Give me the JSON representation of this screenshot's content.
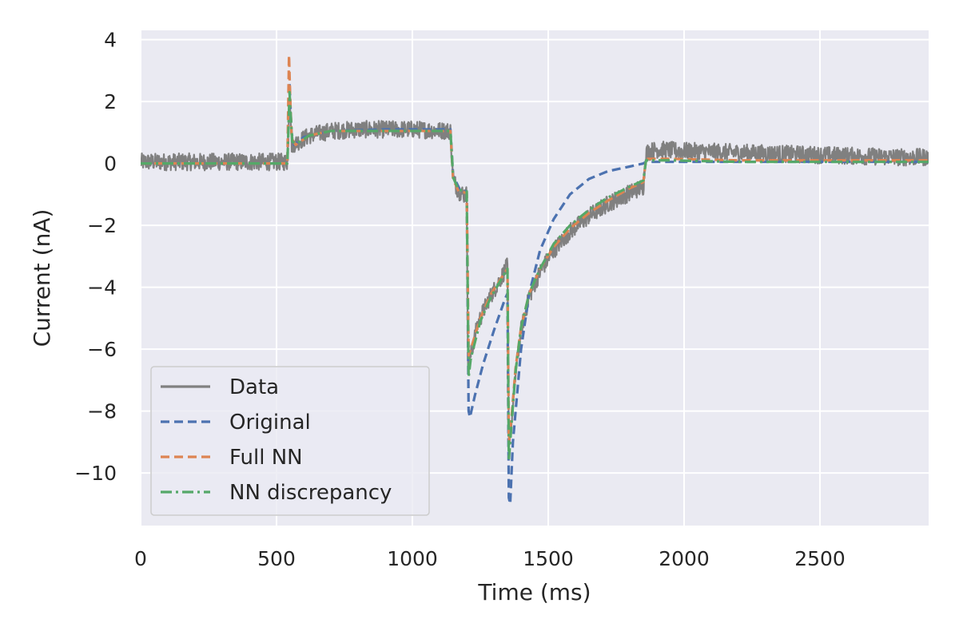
{
  "chart_data": {
    "type": "line",
    "title": "",
    "xlabel": "Time (ms)",
    "ylabel": "Current (nA)",
    "xlim": [
      0,
      2900
    ],
    "ylim": [
      -11.7,
      4.3
    ],
    "xticks": [
      0,
      500,
      1000,
      1500,
      2000,
      2500
    ],
    "xtick_labels": [
      "0",
      "500",
      "1000",
      "1500",
      "2000",
      "2500"
    ],
    "yticks": [
      4,
      2,
      0,
      -2,
      -4,
      -6,
      -8,
      -10
    ],
    "ytick_labels": [
      "4",
      "2",
      "0",
      "−2",
      "−4",
      "−6",
      "−8",
      "−10"
    ],
    "grid": true,
    "legend_position": "lower-left",
    "colors": {
      "background": "#eaeaf2",
      "grid": "#ffffff",
      "data": "#808080",
      "original": "#4c72b0",
      "full_nn": "#dd8452",
      "nn_discrepancy": "#55a868"
    },
    "series": [
      {
        "name": "Data",
        "style": "solid",
        "color": "#808080",
        "noise": 0.28,
        "points": [
          [
            0,
            0.05
          ],
          [
            540,
            0.05
          ],
          [
            548,
            2.4
          ],
          [
            552,
            1.6
          ],
          [
            556,
            0.6
          ],
          [
            580,
            0.7
          ],
          [
            620,
            0.9
          ],
          [
            700,
            1.05
          ],
          [
            800,
            1.1
          ],
          [
            900,
            1.1
          ],
          [
            1000,
            1.1
          ],
          [
            1140,
            1.05
          ],
          [
            1150,
            -0.5
          ],
          [
            1170,
            -0.9
          ],
          [
            1190,
            -1.0
          ],
          [
            1200,
            -1.0
          ],
          [
            1205,
            -6.6
          ],
          [
            1215,
            -6.2
          ],
          [
            1240,
            -5.2
          ],
          [
            1280,
            -4.4
          ],
          [
            1320,
            -3.8
          ],
          [
            1350,
            -3.3
          ],
          [
            1355,
            -9.0
          ],
          [
            1365,
            -8.4
          ],
          [
            1380,
            -6.8
          ],
          [
            1400,
            -5.4
          ],
          [
            1430,
            -4.3
          ],
          [
            1470,
            -3.5
          ],
          [
            1520,
            -2.8
          ],
          [
            1580,
            -2.2
          ],
          [
            1650,
            -1.7
          ],
          [
            1720,
            -1.3
          ],
          [
            1800,
            -0.95
          ],
          [
            1850,
            -0.75
          ],
          [
            1860,
            0.35
          ],
          [
            1900,
            0.45
          ],
          [
            2000,
            0.4
          ],
          [
            2200,
            0.35
          ],
          [
            2400,
            0.3
          ],
          [
            2600,
            0.25
          ],
          [
            2800,
            0.2
          ],
          [
            2900,
            0.2
          ]
        ]
      },
      {
        "name": "Original",
        "style": "dashed",
        "color": "#4c72b0",
        "points": [
          [
            0,
            0.0
          ],
          [
            540,
            0.0
          ],
          [
            548,
            2.6
          ],
          [
            555,
            1.0
          ],
          [
            565,
            0.6
          ],
          [
            600,
            0.85
          ],
          [
            700,
            1.05
          ],
          [
            900,
            1.1
          ],
          [
            1140,
            1.1
          ],
          [
            1150,
            -0.4
          ],
          [
            1175,
            -0.85
          ],
          [
            1200,
            -0.9
          ],
          [
            1207,
            -8.0
          ],
          [
            1212,
            -8.2
          ],
          [
            1230,
            -7.5
          ],
          [
            1260,
            -6.5
          ],
          [
            1300,
            -5.4
          ],
          [
            1340,
            -4.4
          ],
          [
            1350,
            -4.2
          ],
          [
            1355,
            -10.8
          ],
          [
            1360,
            -11.0
          ],
          [
            1370,
            -9.0
          ],
          [
            1400,
            -6.0
          ],
          [
            1430,
            -4.2
          ],
          [
            1470,
            -2.8
          ],
          [
            1520,
            -1.8
          ],
          [
            1580,
            -1.0
          ],
          [
            1650,
            -0.5
          ],
          [
            1720,
            -0.25
          ],
          [
            1800,
            -0.1
          ],
          [
            1850,
            0.0
          ],
          [
            1860,
            0.05
          ],
          [
            2000,
            0.05
          ],
          [
            2400,
            0.05
          ],
          [
            2900,
            0.05
          ]
        ]
      },
      {
        "name": "Full NN",
        "style": "dashed",
        "color": "#dd8452",
        "points": [
          [
            0,
            0.0
          ],
          [
            540,
            0.0
          ],
          [
            546,
            3.5
          ],
          [
            550,
            2.2
          ],
          [
            556,
            0.8
          ],
          [
            570,
            0.6
          ],
          [
            620,
            0.9
          ],
          [
            700,
            1.05
          ],
          [
            900,
            1.05
          ],
          [
            1140,
            1.05
          ],
          [
            1150,
            -0.5
          ],
          [
            1170,
            -0.9
          ],
          [
            1200,
            -0.95
          ],
          [
            1207,
            -6.2
          ],
          [
            1215,
            -6.0
          ],
          [
            1250,
            -5.0
          ],
          [
            1290,
            -4.2
          ],
          [
            1350,
            -3.4
          ],
          [
            1355,
            -9.0
          ],
          [
            1365,
            -8.2
          ],
          [
            1380,
            -6.6
          ],
          [
            1400,
            -5.3
          ],
          [
            1430,
            -4.2
          ],
          [
            1470,
            -3.4
          ],
          [
            1520,
            -2.7
          ],
          [
            1580,
            -2.1
          ],
          [
            1650,
            -1.6
          ],
          [
            1720,
            -1.2
          ],
          [
            1800,
            -0.8
          ],
          [
            1850,
            -0.6
          ],
          [
            1860,
            0.15
          ],
          [
            1950,
            0.15
          ],
          [
            2200,
            0.1
          ],
          [
            2500,
            0.1
          ],
          [
            2900,
            0.1
          ]
        ]
      },
      {
        "name": "NN discrepancy",
        "style": "dashdot",
        "color": "#55a868",
        "points": [
          [
            0,
            0.0
          ],
          [
            540,
            0.0
          ],
          [
            548,
            2.3
          ],
          [
            552,
            1.6
          ],
          [
            558,
            0.7
          ],
          [
            575,
            0.65
          ],
          [
            620,
            0.9
          ],
          [
            700,
            1.05
          ],
          [
            900,
            1.05
          ],
          [
            1140,
            1.05
          ],
          [
            1150,
            -0.45
          ],
          [
            1170,
            -0.85
          ],
          [
            1200,
            -0.9
          ],
          [
            1207,
            -6.9
          ],
          [
            1215,
            -6.3
          ],
          [
            1250,
            -5.1
          ],
          [
            1290,
            -4.3
          ],
          [
            1350,
            -3.4
          ],
          [
            1355,
            -9.6
          ],
          [
            1365,
            -8.4
          ],
          [
            1380,
            -6.7
          ],
          [
            1400,
            -5.3
          ],
          [
            1430,
            -4.2
          ],
          [
            1470,
            -3.4
          ],
          [
            1520,
            -2.6
          ],
          [
            1580,
            -2.0
          ],
          [
            1650,
            -1.5
          ],
          [
            1720,
            -1.1
          ],
          [
            1800,
            -0.75
          ],
          [
            1850,
            -0.55
          ],
          [
            1860,
            0.1
          ],
          [
            1950,
            0.1
          ],
          [
            2200,
            0.05
          ],
          [
            2500,
            0.05
          ],
          [
            2900,
            0.05
          ]
        ]
      }
    ]
  }
}
